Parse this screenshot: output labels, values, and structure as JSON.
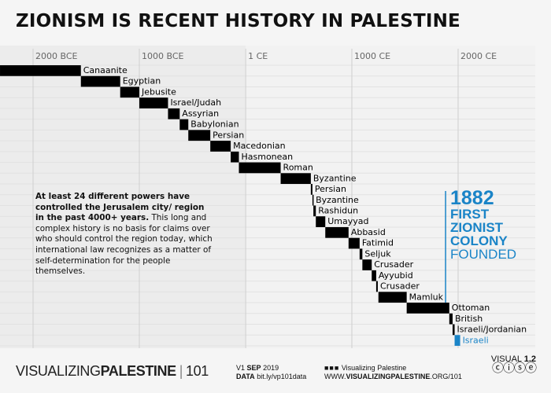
{
  "title": "ZIONISM IS RECENT HISTORY IN PALESTINE",
  "chart_data": {
    "type": "bar",
    "subtype": "timeline",
    "xlim": [
      -2311,
      2850
    ],
    "x_ticks": [
      {
        "year": -2000,
        "label": "2000 BCE"
      },
      {
        "year": -1000,
        "label": "1000 BCE"
      },
      {
        "year": 1,
        "label": "1 CE"
      },
      {
        "year": 1000,
        "label": "1000 CE"
      },
      {
        "year": 2000,
        "label": "2000 CE"
      }
    ],
    "grid": true,
    "periods": [
      {
        "label": "Canaanite",
        "start": -2311,
        "end": -1550
      },
      {
        "label": "Egyptian",
        "start": -1550,
        "end": -1180
      },
      {
        "label": "Jebusite",
        "start": -1180,
        "end": -1000
      },
      {
        "label": "Israel/Judah",
        "start": -1000,
        "end": -730
      },
      {
        "label": "Assyrian",
        "start": -730,
        "end": -620
      },
      {
        "label": "Babylonian",
        "start": -620,
        "end": -539
      },
      {
        "label": "Persian",
        "start": -539,
        "end": -332
      },
      {
        "label": "Macedonian",
        "start": -332,
        "end": -140
      },
      {
        "label": "Hasmonean",
        "start": -140,
        "end": -63
      },
      {
        "label": "Roman",
        "start": -63,
        "end": 330
      },
      {
        "label": "Byzantine",
        "start": 330,
        "end": 614
      },
      {
        "label": "Persian",
        "start": 614,
        "end": 629
      },
      {
        "label": "Byzantine",
        "start": 629,
        "end": 638
      },
      {
        "label": "Rashidun",
        "start": 638,
        "end": 661
      },
      {
        "label": "Umayyad",
        "start": 661,
        "end": 750
      },
      {
        "label": "Abbasid",
        "start": 750,
        "end": 969
      },
      {
        "label": "Fatimid",
        "start": 969,
        "end": 1073
      },
      {
        "label": "Seljuk",
        "start": 1073,
        "end": 1099
      },
      {
        "label": "Crusader",
        "start": 1099,
        "end": 1187
      },
      {
        "label": "Ayyubid",
        "start": 1187,
        "end": 1229
      },
      {
        "label": "Crusader",
        "start": 1229,
        "end": 1244
      },
      {
        "label": "Mamluk",
        "start": 1250,
        "end": 1516
      },
      {
        "label": "Ottoman",
        "start": 1516,
        "end": 1917
      },
      {
        "label": "British",
        "start": 1917,
        "end": 1948
      },
      {
        "label": "Israeli/Jordanian",
        "start": 1948,
        "end": 1967
      },
      {
        "label": "Israeli",
        "start": 1967,
        "end": 2019,
        "highlight": true
      }
    ],
    "marker": {
      "year": 1882
    },
    "colors": {
      "bar": "#000000",
      "highlight": "#1a84c7",
      "marker": "#1a84c7"
    }
  },
  "callout": {
    "year": "1882",
    "line1": "FIRST",
    "line2": "ZIONIST",
    "line3": "COLONY",
    "line4": "FOUNDED"
  },
  "note": {
    "bold": "At least 24 different powers have controlled the Jerusalem city/ region in the past 4000+ years.",
    "text": " This long and complex history is no basis for claims over who should control the region today, which international law recognizes as a matter of self-determination for the people themselves."
  },
  "footer": {
    "brand_light": "VISUALIZING",
    "brand_bold": "PALESTINE",
    "brand_num": "101",
    "version": "V1",
    "date_bold": "SEP",
    "date": "2019",
    "data_label": "DATA",
    "data_link": "bit.ly/vp101data",
    "social": "Visualizing Palestine",
    "url_pre": "WWW.",
    "url_bold": "VISUALIZINGPALESTINE",
    "url_post": ".ORG/101",
    "visual_label": "VISUAL",
    "visual_num": "1.2",
    "license_icons": "cc-by-nc-nd-icons"
  }
}
